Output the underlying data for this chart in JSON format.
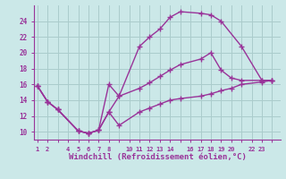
{
  "bg_color": "#cbe8e8",
  "grid_color": "#aacccc",
  "line_color": "#993399",
  "marker": "+",
  "markersize": 4,
  "linewidth": 1.0,
  "curve1_x": [
    0,
    1,
    2,
    4,
    5,
    6,
    7,
    8,
    10,
    11,
    12,
    13,
    14,
    16,
    17,
    18,
    20,
    22,
    23
  ],
  "curve1_y": [
    15.8,
    13.8,
    12.8,
    10.1,
    9.8,
    10.2,
    12.5,
    14.5,
    20.8,
    22.0,
    23.0,
    24.5,
    25.2,
    25.0,
    24.8,
    24.0,
    20.8,
    16.5,
    16.5
  ],
  "curve2_x": [
    0,
    1,
    2,
    4,
    5,
    6,
    7,
    8,
    10,
    11,
    12,
    13,
    14,
    16,
    17,
    18,
    19,
    20,
    22,
    23
  ],
  "curve2_y": [
    15.8,
    13.8,
    12.8,
    10.1,
    9.8,
    10.2,
    16.0,
    14.5,
    15.5,
    16.2,
    17.0,
    17.8,
    18.5,
    19.2,
    20.0,
    17.8,
    16.8,
    16.5,
    16.5,
    16.5
  ],
  "curve3_x": [
    0,
    1,
    2,
    4,
    5,
    6,
    7,
    8,
    10,
    11,
    12,
    13,
    14,
    16,
    17,
    18,
    19,
    20,
    22,
    23
  ],
  "curve3_y": [
    15.8,
    13.8,
    12.8,
    10.1,
    9.8,
    10.2,
    12.5,
    10.8,
    12.5,
    13.0,
    13.5,
    14.0,
    14.2,
    14.5,
    14.8,
    15.2,
    15.5,
    16.0,
    16.3,
    16.5
  ],
  "xlabel": "Windchill (Refroidissement éolien,°C)",
  "xlabel_fontsize": 6.5,
  "xtick_labels": [
    "0",
    "1",
    "2",
    "",
    "4",
    "5",
    "6",
    "7",
    "8",
    "",
    "10",
    "11",
    "12",
    "13",
    "14",
    "",
    "16",
    "17",
    "18",
    "19",
    "20",
    "",
    "22",
    "23"
  ],
  "xticks_pos": [
    0,
    1,
    2,
    3,
    4,
    5,
    6,
    7,
    8,
    9,
    10,
    11,
    12,
    13,
    14,
    15,
    16,
    17,
    18,
    19,
    20,
    21,
    22,
    23
  ],
  "yticks": [
    10,
    12,
    14,
    16,
    18,
    20,
    22,
    24
  ],
  "xlim": [
    -0.3,
    23.8
  ],
  "ylim": [
    9.0,
    26.0
  ]
}
